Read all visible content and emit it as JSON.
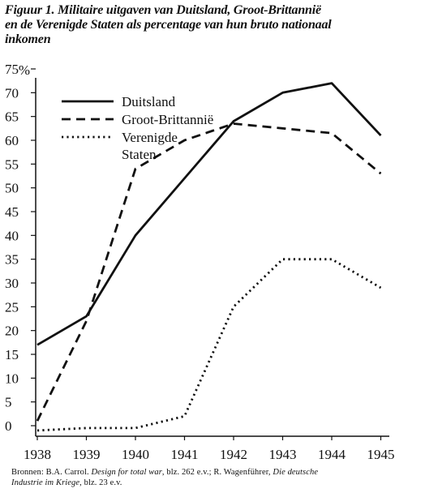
{
  "figure": {
    "title_lines": [
      "Figuur 1.  Militaire uitgaven van Duitsland, Groot-Brittannië",
      "en de Verenigde Staten als percentage van hun bruto nationaal",
      "inkomen"
    ]
  },
  "source": {
    "line1_a": "Bronnen: B.A. Carrol. ",
    "line1_b": "Design for total war",
    "line1_c": ", blz. 262 e.v.; R. Wagenführer, ",
    "line1_d": "Die deutsche",
    "line2_a": "Industrie im Kriege",
    "line2_b": ", blz. 23 e.v."
  },
  "chart_data": {
    "type": "line",
    "title": "Figuur 1.  Militaire uitgaven van Duitsland, Groot-Brittannië en de Verenigde Staten als percentage van hun bruto nationaal inkomen",
    "xlabel": "",
    "ylabel": "%",
    "x": [
      "1938",
      "1939",
      "1940",
      "1941",
      "1942",
      "1943",
      "1944",
      "1945"
    ],
    "ylim": [
      0,
      75
    ],
    "yticks": [
      0,
      5,
      10,
      15,
      20,
      25,
      30,
      35,
      40,
      45,
      50,
      55,
      60,
      65,
      70,
      75
    ],
    "grid": false,
    "legend_position": "top-left",
    "series": [
      {
        "name": "Duitsland",
        "style": "solid",
        "values": [
          17,
          23,
          40,
          52,
          64,
          70,
          72,
          61
        ]
      },
      {
        "name": "Groot-Brittannië",
        "style": "dashed",
        "values": [
          1,
          22,
          54,
          60,
          63.5,
          62.5,
          61.5,
          53
        ]
      },
      {
        "name_lines": [
          "Verenigde",
          "Staten"
        ],
        "style": "dotted",
        "values": [
          -1,
          -0.5,
          -0.5,
          2,
          25,
          35,
          35,
          29
        ]
      }
    ]
  }
}
